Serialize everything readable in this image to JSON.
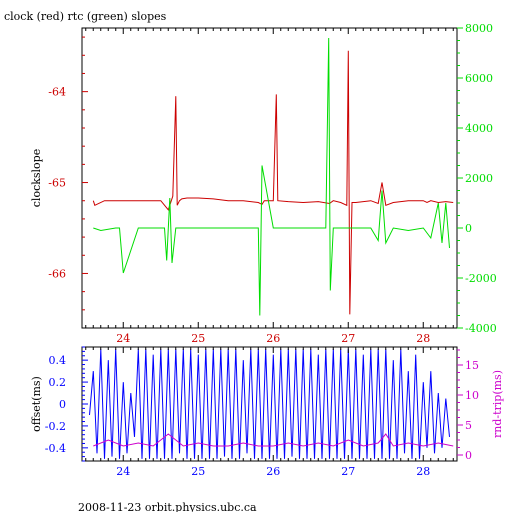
{
  "title": "clock (red) rtc (green) slopes",
  "footer": "2008-11-23  orbit.physics.ubc.ca",
  "colors": {
    "frame": "#000000",
    "clock": "#cc0000",
    "rtc": "#00dd00",
    "offset": "#0000ff",
    "rndtrip": "#cc00cc",
    "background": "#ffffff"
  },
  "chart_data": [
    {
      "type": "line",
      "title": "clock (red) rtc (green) slopes",
      "xlabel": "",
      "ylabel": "clockslope",
      "y2label": "",
      "xlim": [
        23.45,
        28.45
      ],
      "ylim": [
        -66.6,
        -63.3
      ],
      "y2lim": [
        -4000,
        8000
      ],
      "xticks": [
        24,
        25,
        26,
        27,
        28
      ],
      "yticks": [
        -66,
        -65,
        -64
      ],
      "y2ticks": [
        -4000,
        -2000,
        0,
        2000,
        4000,
        6000,
        8000
      ],
      "grid": false,
      "series": [
        {
          "name": "clock",
          "axis": "left",
          "x": [
            23.6,
            23.62,
            23.75,
            23.9,
            24.1,
            24.3,
            24.5,
            24.6,
            24.66,
            24.7,
            24.72,
            24.75,
            24.78,
            24.85,
            25.0,
            25.2,
            25.4,
            25.6,
            25.8,
            25.85,
            25.88,
            26.0,
            26.04,
            26.06,
            26.2,
            26.4,
            26.6,
            26.75,
            26.8,
            26.9,
            26.98,
            27.0,
            27.02,
            27.05,
            27.1,
            27.3,
            27.4,
            27.45,
            27.5,
            27.6,
            27.8,
            28.0,
            28.05,
            28.1,
            28.2,
            28.3,
            28.4
          ],
          "y": [
            -65.2,
            -65.25,
            -65.2,
            -65.2,
            -65.2,
            -65.2,
            -65.2,
            -65.3,
            -65.15,
            -64.05,
            -65.25,
            -65.2,
            -65.18,
            -65.17,
            -65.17,
            -65.18,
            -65.2,
            -65.2,
            -65.22,
            -65.24,
            -65.2,
            -65.2,
            -64.03,
            -65.2,
            -65.21,
            -65.22,
            -65.21,
            -65.23,
            -65.2,
            -65.22,
            -65.25,
            -63.55,
            -66.45,
            -65.22,
            -65.22,
            -65.2,
            -65.23,
            -65.0,
            -65.25,
            -65.22,
            -65.2,
            -65.2,
            -65.22,
            -65.2,
            -65.22,
            -65.21,
            -65.22
          ]
        },
        {
          "name": "rtc",
          "axis": "right",
          "x": [
            23.6,
            23.7,
            23.9,
            23.95,
            24.0,
            24.2,
            24.4,
            24.55,
            24.58,
            24.62,
            24.65,
            24.7,
            24.8,
            25.0,
            25.2,
            25.5,
            25.75,
            25.8,
            25.82,
            25.85,
            26.0,
            26.2,
            26.4,
            26.5,
            26.6,
            26.7,
            26.74,
            26.76,
            26.8,
            26.9,
            27.0,
            27.1,
            27.2,
            27.3,
            27.4,
            27.45,
            27.5,
            27.6,
            27.8,
            28.0,
            28.1,
            28.2,
            28.25,
            28.3,
            28.35
          ],
          "y": [
            0,
            -100,
            0,
            0,
            -1800,
            0,
            0,
            0,
            -1300,
            1200,
            -1400,
            0,
            0,
            0,
            0,
            0,
            0,
            0,
            -3500,
            2500,
            0,
            0,
            0,
            0,
            0,
            0,
            7600,
            -2500,
            0,
            0,
            0,
            0,
            0,
            0,
            -500,
            1500,
            -600,
            0,
            -100,
            0,
            -400,
            1000,
            -600,
            1000,
            -800
          ]
        }
      ]
    },
    {
      "type": "line",
      "xlabel": "",
      "ylabel": "offset(ms)",
      "y2label": "rnd-trip(ms)",
      "xlim": [
        23.45,
        28.45
      ],
      "ylim": [
        -0.52,
        0.52
      ],
      "y2lim": [
        -1,
        18
      ],
      "xticks": [
        24,
        25,
        26,
        27,
        28
      ],
      "yticks": [
        -0.4,
        -0.2,
        0,
        0.2,
        0.4
      ],
      "y2ticks": [
        0,
        5,
        10,
        15
      ],
      "grid": false,
      "series": [
        {
          "name": "offset",
          "axis": "left",
          "x": [
            23.55,
            23.6,
            23.65,
            23.7,
            23.75,
            23.8,
            23.85,
            23.9,
            23.95,
            24.0,
            24.05,
            24.1,
            24.15,
            24.2,
            24.25,
            24.3,
            24.35,
            24.4,
            24.45,
            24.5,
            24.55,
            24.6,
            24.65,
            24.7,
            24.75,
            24.8,
            24.85,
            24.9,
            24.95,
            25.0,
            25.05,
            25.1,
            25.15,
            25.2,
            25.25,
            25.3,
            25.35,
            25.4,
            25.45,
            25.5,
            25.55,
            25.6,
            25.65,
            25.7,
            25.75,
            25.8,
            25.85,
            25.9,
            25.95,
            26.0,
            26.05,
            26.1,
            26.15,
            26.2,
            26.25,
            26.3,
            26.35,
            26.4,
            26.45,
            26.5,
            26.55,
            26.6,
            26.65,
            26.7,
            26.75,
            26.8,
            26.85,
            26.9,
            26.95,
            27.0,
            27.05,
            27.1,
            27.15,
            27.2,
            27.25,
            27.3,
            27.35,
            27.4,
            27.45,
            27.5,
            27.55,
            27.6,
            27.65,
            27.7,
            27.75,
            27.8,
            27.85,
            27.9,
            27.95,
            28.0,
            28.05,
            28.1,
            28.15,
            28.2,
            28.25,
            28.3,
            28.35
          ],
          "y": [
            -0.1,
            0.3,
            -0.45,
            0.5,
            -0.5,
            0.4,
            -0.48,
            0.5,
            -0.5,
            0.2,
            -0.45,
            0.1,
            -0.3,
            0.5,
            -0.5,
            0.5,
            -0.5,
            0.45,
            -0.5,
            0.5,
            -0.5,
            0.5,
            -0.5,
            0.5,
            -0.45,
            0.5,
            -0.5,
            0.5,
            -0.5,
            0.45,
            -0.5,
            0.5,
            -0.5,
            0.5,
            -0.5,
            0.5,
            -0.48,
            0.5,
            -0.5,
            0.5,
            -0.5,
            0.4,
            -0.45,
            0.5,
            -0.5,
            0.5,
            -0.5,
            0.5,
            -0.5,
            0.45,
            -0.5,
            0.5,
            -0.5,
            0.5,
            -0.48,
            0.5,
            -0.5,
            0.5,
            -0.5,
            0.5,
            -0.5,
            0.45,
            -0.5,
            0.5,
            -0.5,
            0.5,
            -0.5,
            0.5,
            -0.5,
            0.5,
            -0.5,
            0.5,
            -0.5,
            0.45,
            -0.5,
            0.5,
            -0.5,
            0.5,
            -0.5,
            0.5,
            -0.5,
            0.4,
            -0.5,
            0.5,
            -0.45,
            0.3,
            -0.5,
            0.45,
            -0.5,
            0.2,
            -0.4,
            0.3,
            -0.45,
            0.1,
            -0.4,
            0.05,
            -0.3
          ]
        },
        {
          "name": "rnd-trip",
          "axis": "right",
          "x": [
            23.6,
            23.8,
            24.0,
            24.2,
            24.4,
            24.6,
            24.8,
            25.0,
            25.2,
            25.4,
            25.6,
            25.8,
            26.0,
            26.2,
            26.4,
            26.6,
            26.8,
            27.0,
            27.2,
            27.4,
            27.5,
            27.6,
            27.8,
            28.0,
            28.2,
            28.4
          ],
          "y": [
            1.5,
            2.5,
            1.5,
            2.0,
            1.5,
            3.5,
            1.5,
            2.0,
            1.5,
            1.5,
            2.0,
            1.5,
            1.5,
            2.0,
            1.5,
            2.0,
            1.5,
            2.5,
            1.5,
            2.0,
            3.5,
            1.5,
            2.0,
            1.5,
            2.0,
            1.5
          ]
        }
      ]
    }
  ]
}
